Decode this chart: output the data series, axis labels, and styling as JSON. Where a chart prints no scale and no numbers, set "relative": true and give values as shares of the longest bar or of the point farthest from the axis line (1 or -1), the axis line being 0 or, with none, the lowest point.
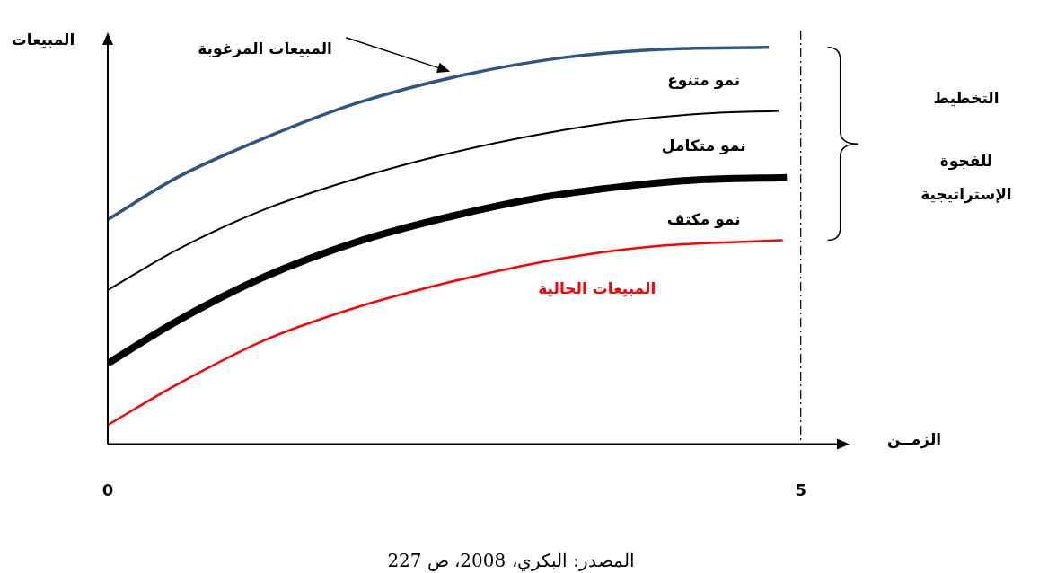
{
  "chart_data": {
    "type": "line",
    "relative": true,
    "xlabel": "الزمــن",
    "ylabel": "المبيعات",
    "xlim": [
      0,
      5.3
    ],
    "xticks": [
      0,
      5
    ],
    "grid": false,
    "legend": false,
    "marker": "none",
    "series": [
      {
        "name": "المبيعات المرغوبة",
        "color": "#2e5584",
        "x": [
          0,
          0.5,
          1.12,
          1.8,
          2.56,
          3.3,
          4.0,
          4.77
        ],
        "values": [
          0.566,
          0.672,
          0.77,
          0.86,
          0.93,
          0.975,
          0.995,
          1
        ]
      },
      {
        "color": "#000000",
        "x": [
          0,
          0.5,
          1.12,
          1.8,
          2.43,
          3.1,
          3.73,
          4.3,
          4.84
        ],
        "values": [
          0.388,
          0.49,
          0.59,
          0.67,
          0.73,
          0.78,
          0.815,
          0.833,
          0.84
        ]
      },
      {
        "color": "#000000",
        "x": [
          0,
          0.5,
          1.12,
          1.8,
          2.43,
          3.1,
          3.73,
          4.3,
          4.9
        ],
        "values": [
          0.203,
          0.31,
          0.42,
          0.51,
          0.57,
          0.62,
          0.65,
          0.667,
          0.672
        ]
      },
      {
        "name": "المبيعات الحالية",
        "color": "#ff0000",
        "x": [
          0,
          0.5,
          1.12,
          1.8,
          2.43,
          3.0,
          3.4,
          4.0,
          4.87
        ],
        "values": [
          0.048,
          0.15,
          0.26,
          0.345,
          0.405,
          0.45,
          0.475,
          0.5,
          0.514
        ]
      }
    ],
    "ref_lines": [
      {
        "axis": "x",
        "value": 5,
        "line_style": "dashed"
      }
    ],
    "annotations": [
      "نمو متنوع",
      "نمو متكامل",
      "نمو مكثف",
      "التخطيط للفجوة الإستراتيجية",
      "المصدر: البكري، 2008، ص 227"
    ]
  }
}
